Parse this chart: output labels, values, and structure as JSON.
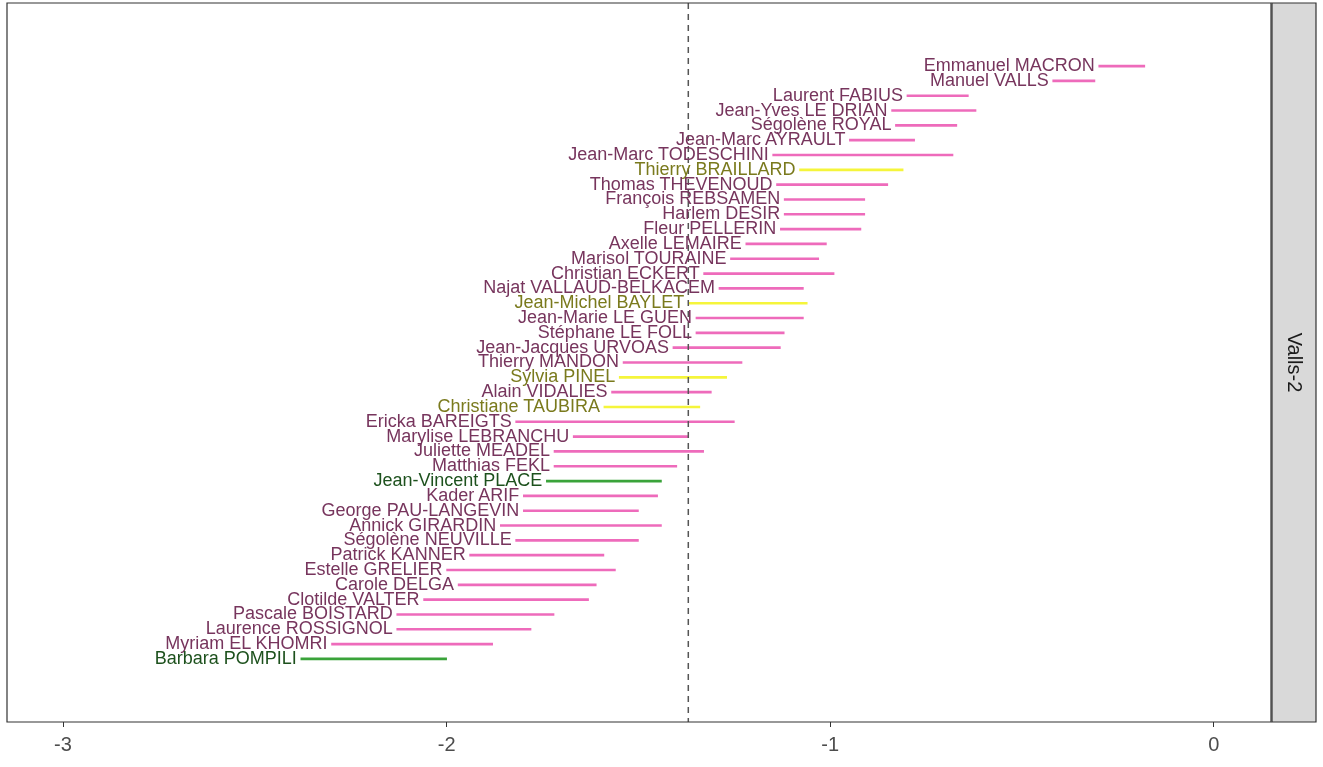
{
  "chart_data": {
    "type": "bar",
    "orientation": "horizontal",
    "title": "Valls-2",
    "categories": [
      "Emmanuel MACRON",
      "Manuel VALLS",
      "Laurent FABIUS",
      "Jean-Yves LE DRIAN",
      "Ségolène ROYAL",
      "Jean-Marc AYRAULT",
      "Jean-Marc TODESCHINI",
      "Thierry BRAILLARD",
      "Thomas THEVENOUD",
      "François REBSAMEN",
      "Harlem DESIR",
      "Fleur PELLERIN",
      "Axelle LEMAIRE",
      "Marisol TOURAINE",
      "Christian ECKERT",
      "Najat VALLAUD-BELKACEM",
      "Jean-Michel BAYLET",
      "Jean-Marie LE GUEN",
      "Stéphane LE FOLL",
      "Jean-Jacques URVOAS",
      "Thierry MANDON",
      "Sylvia PINEL",
      "Alain VIDALIES",
      "Christiane TAUBIRA",
      "Ericka BAREIGTS",
      "Marylise LEBRANCHU",
      "Juliette MEADEL",
      "Matthias FEKL",
      "Jean-Vincent PLACE",
      "Kader ARIF",
      "George PAU-LANGEVIN",
      "Annick GIRARDIN",
      "Ségolène NEUVILLE",
      "Patrick KANNER",
      "Estelle GRELIER",
      "Carole DELGA",
      "Clotilde VALTER",
      "Pascale BOISTARD",
      "Laurence ROSSIGNOL",
      "Myriam EL KHOMRI",
      "Barbara POMPILI"
    ],
    "base": [
      -0.3,
      -0.42,
      -0.8,
      -0.84,
      -0.83,
      -0.95,
      -1.15,
      -1.08,
      -1.14,
      -1.12,
      -1.12,
      -1.13,
      -1.22,
      -1.26,
      -1.33,
      -1.29,
      -1.37,
      -1.35,
      -1.35,
      -1.41,
      -1.54,
      -1.55,
      -1.57,
      -1.59,
      -1.82,
      -1.67,
      -1.72,
      -1.72,
      -1.74,
      -1.8,
      -1.8,
      -1.86,
      -1.82,
      -1.94,
      -2.0,
      -1.97,
      -2.06,
      -2.13,
      -2.13,
      -2.3,
      -2.38
    ],
    "values": [
      0.12,
      0.11,
      0.16,
      0.22,
      0.16,
      0.17,
      0.47,
      0.27,
      0.29,
      0.21,
      0.21,
      0.21,
      0.21,
      0.23,
      0.34,
      0.22,
      0.31,
      0.28,
      0.23,
      0.28,
      0.31,
      0.28,
      0.26,
      0.25,
      0.57,
      0.3,
      0.39,
      0.32,
      0.3,
      0.35,
      0.3,
      0.42,
      0.32,
      0.35,
      0.44,
      0.36,
      0.43,
      0.41,
      0.35,
      0.42,
      0.38
    ],
    "colors": [
      "#ee6bbb",
      "#ee6bbb",
      "#ee6bbb",
      "#ee6bbb",
      "#ee6bbb",
      "#ee6bbb",
      "#ee6bbb",
      "#f5f53b",
      "#ee6bbb",
      "#ee6bbb",
      "#ee6bbb",
      "#ee6bbb",
      "#ee6bbb",
      "#ee6bbb",
      "#ee6bbb",
      "#ee6bbb",
      "#f5f53b",
      "#ee6bbb",
      "#ee6bbb",
      "#ee6bbb",
      "#ee6bbb",
      "#f5f53b",
      "#ee6bbb",
      "#f5f53b",
      "#ee6bbb",
      "#ee6bbb",
      "#ee6bbb",
      "#ee6bbb",
      "#3aa33a",
      "#ee6bbb",
      "#ee6bbb",
      "#ee6bbb",
      "#ee6bbb",
      "#ee6bbb",
      "#ee6bbb",
      "#ee6bbb",
      "#ee6bbb",
      "#ee6bbb",
      "#ee6bbb",
      "#ee6bbb",
      "#3aa33a"
    ],
    "xlim": [
      -3.146,
      0.149
    ],
    "xticks": [
      -3,
      -2,
      -1,
      0
    ],
    "ref_lines": [
      {
        "axis": "x",
        "value": -1.37,
        "line_style": "dashed",
        "color": "#555555"
      }
    ],
    "grid": false,
    "legend": false
  }
}
